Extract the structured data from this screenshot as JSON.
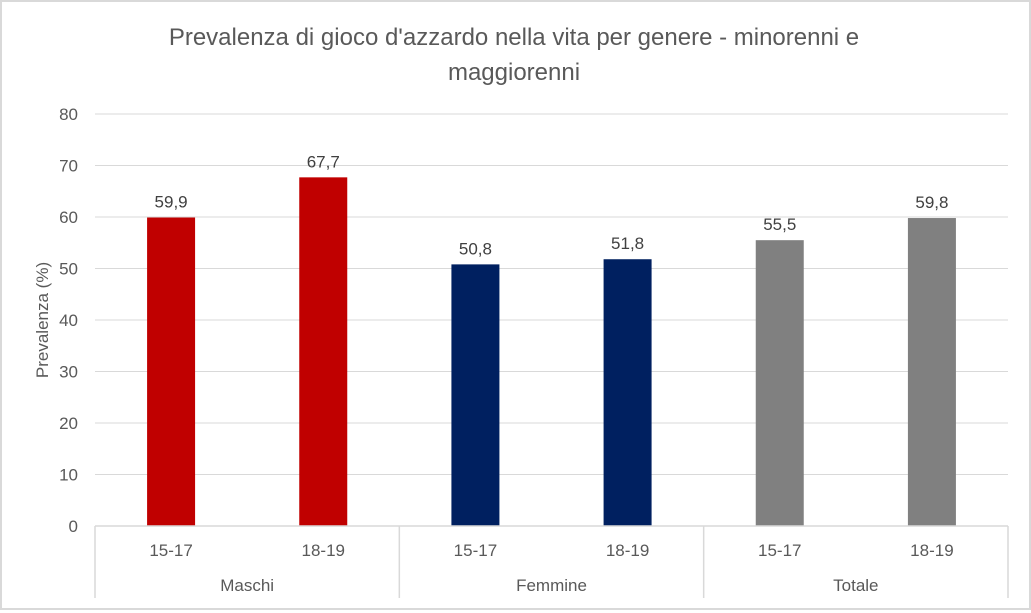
{
  "chart_data": {
    "type": "bar",
    "title": "Prevalenza di gioco d'azzardo nella vita per genere - minorenni e maggiorenni",
    "title_lines": [
      "Prevalenza di gioco d'azzardo nella vita per genere - minorenni e",
      "maggiorenni"
    ],
    "xlabel": "",
    "ylabel": "Prevalenza (%)",
    "ylim": [
      0,
      80
    ],
    "yticks": [
      "0",
      "10",
      "20",
      "30",
      "40",
      "50",
      "60",
      "70",
      "80"
    ],
    "grid": true,
    "legend": "none",
    "groups": [
      {
        "name": "Maschi",
        "color": "#C00000",
        "categories": [
          "15-17",
          "18-19"
        ],
        "values": [
          59.9,
          67.7
        ],
        "labels": [
          "59,9",
          "67,7"
        ]
      },
      {
        "name": "Femmine",
        "color": "#002060",
        "categories": [
          "15-17",
          "18-19"
        ],
        "values": [
          50.8,
          51.8
        ],
        "labels": [
          "50,8",
          "51,8"
        ]
      },
      {
        "name": "Totale",
        "color": "#808080",
        "categories": [
          "15-17",
          "18-19"
        ],
        "values": [
          55.5,
          59.8
        ],
        "labels": [
          "55,5",
          "59,8"
        ]
      }
    ]
  }
}
